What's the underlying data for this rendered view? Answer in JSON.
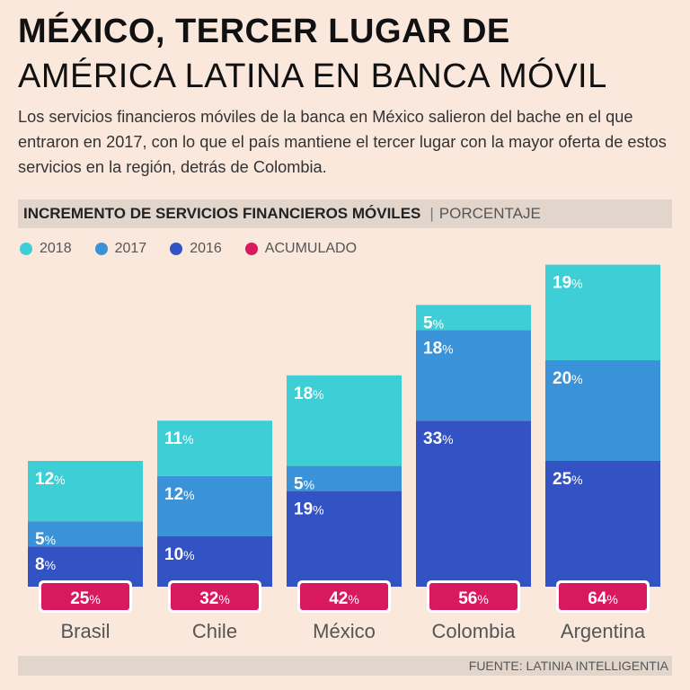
{
  "header": {
    "title_line1": "MÉXICO, TERCER LUGAR DE",
    "title_line2": "AMÉRICA LATINA EN BANCA MÓVIL",
    "lede": "Los servicios financieros móviles de la banca en México salieron del bache en el que entraron en 2017, con lo que el país mantiene el tercer lugar con la mayor oferta de estos servicios en la región, detrás de Colombia."
  },
  "subtitle": {
    "main": "INCREMENTO DE SERVICIOS FINANCIEROS MÓVILES",
    "separator": "|",
    "unit": "PORCENTAJE"
  },
  "legend": [
    {
      "label": "2018",
      "color": "#3ecfd6"
    },
    {
      "label": "2017",
      "color": "#3a93d8"
    },
    {
      "label": "2016",
      "color": "#3353c4"
    },
    {
      "label": "ACUMULADO",
      "color": "#d8195e"
    }
  ],
  "chart_data": {
    "type": "bar",
    "stacked": true,
    "title": "INCREMENTO DE SERVICIOS FINANCIEROS MÓVILES",
    "ylabel": "PORCENTAJE",
    "categories": [
      "Brasil",
      "Chile",
      "México",
      "Colombia",
      "Argentina"
    ],
    "series": [
      {
        "name": "2016",
        "values": [
          8,
          10,
          19,
          33,
          25
        ],
        "labels": [
          "8",
          "10",
          "19",
          "33",
          "25"
        ]
      },
      {
        "name": "2017",
        "values": [
          5,
          12,
          5,
          18,
          20
        ],
        "labels": [
          "5",
          "12",
          "5",
          "18",
          "20"
        ]
      },
      {
        "name": "2018",
        "values": [
          12,
          11,
          18,
          5,
          19
        ],
        "labels": [
          "12",
          "11",
          "18",
          "5",
          "19"
        ]
      }
    ],
    "totals": {
      "name": "ACUMULADO",
      "values": [
        25,
        32,
        42,
        56,
        64
      ],
      "labels": [
        "25",
        "32",
        "42",
        "56",
        "64"
      ]
    },
    "value_suffix": "%",
    "ylim": [
      0,
      64
    ]
  },
  "source": "FUENTE: LATINIA INTELLIGENTIA"
}
